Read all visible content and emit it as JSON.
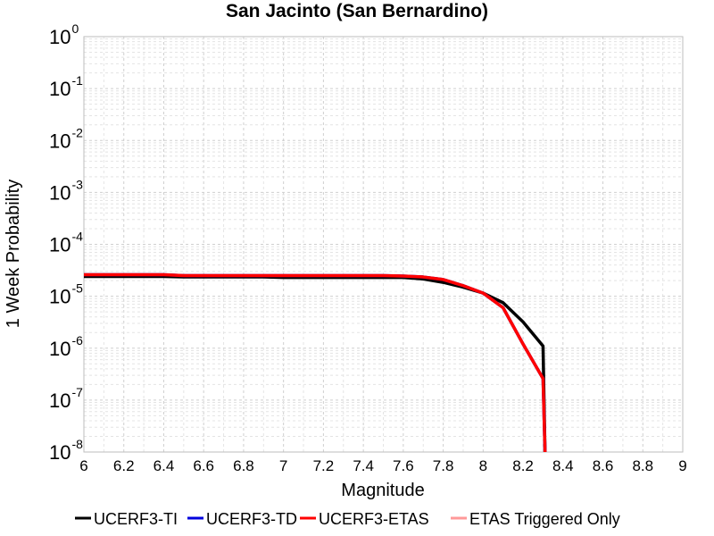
{
  "chart_data": {
    "type": "line",
    "title": "San Jacinto (San Bernardino)",
    "xlabel": "Magnitude",
    "ylabel": "1 Week Probability",
    "xlim": [
      6,
      9
    ],
    "ylim": [
      1e-08,
      1
    ],
    "yscale": "log",
    "grid": true,
    "x_ticks": [
      "6",
      "6.2",
      "6.4",
      "6.6",
      "6.8",
      "7",
      "7.2",
      "7.4",
      "7.6",
      "7.8",
      "8",
      "8.2",
      "8.4",
      "8.6",
      "8.8",
      "9"
    ],
    "y_ticks": [
      {
        "base": "10",
        "exp": "0"
      },
      {
        "base": "10",
        "exp": "-1"
      },
      {
        "base": "10",
        "exp": "-2"
      },
      {
        "base": "10",
        "exp": "-3"
      },
      {
        "base": "10",
        "exp": "-4"
      },
      {
        "base": "10",
        "exp": "-5"
      },
      {
        "base": "10",
        "exp": "-6"
      },
      {
        "base": "10",
        "exp": "-7"
      },
      {
        "base": "10",
        "exp": "-8"
      }
    ],
    "legend_position": "bottom",
    "series": [
      {
        "name": "UCERF3-TI",
        "color": "#000000",
        "x": [
          6.0,
          6.1,
          6.2,
          6.3,
          6.4,
          6.5,
          6.6,
          6.7,
          6.8,
          6.9,
          7.0,
          7.1,
          7.2,
          7.3,
          7.4,
          7.5,
          7.6,
          7.7,
          7.8,
          7.9,
          8.0,
          8.1,
          8.2,
          8.3,
          8.31
        ],
        "y": [
          2.4e-05,
          2.4e-05,
          2.4e-05,
          2.4e-05,
          2.4e-05,
          2.35e-05,
          2.35e-05,
          2.35e-05,
          2.35e-05,
          2.35e-05,
          2.3e-05,
          2.3e-05,
          2.3e-05,
          2.3e-05,
          2.3e-05,
          2.3e-05,
          2.3e-05,
          2.15e-05,
          1.85e-05,
          1.5e-05,
          1.15e-05,
          7.5e-06,
          3.2e-06,
          1.1e-06,
          1e-08
        ]
      },
      {
        "name": "UCERF3-TD",
        "color": "#0000dd",
        "x": [
          6.0,
          6.1,
          6.2,
          6.3,
          6.4,
          6.5,
          6.6,
          6.7,
          6.8,
          6.9,
          7.0,
          7.1,
          7.2,
          7.3,
          7.4,
          7.5,
          7.6,
          7.7,
          7.8,
          7.9,
          8.0,
          8.1,
          8.2,
          8.3,
          8.31
        ],
        "y": [
          2.6e-05,
          2.6e-05,
          2.6e-05,
          2.6e-05,
          2.6e-05,
          2.5e-05,
          2.5e-05,
          2.5e-05,
          2.5e-05,
          2.5e-05,
          2.5e-05,
          2.5e-05,
          2.5e-05,
          2.5e-05,
          2.5e-05,
          2.5e-05,
          2.45e-05,
          2.35e-05,
          2.1e-05,
          1.6e-05,
          1.15e-05,
          6e-06,
          1.2e-06,
          2.6e-07,
          1e-08
        ]
      },
      {
        "name": "UCERF3-ETAS",
        "color": "#ff0000",
        "x": [
          6.0,
          6.1,
          6.2,
          6.3,
          6.4,
          6.5,
          6.6,
          6.7,
          6.8,
          6.9,
          7.0,
          7.1,
          7.2,
          7.3,
          7.4,
          7.5,
          7.6,
          7.7,
          7.8,
          7.9,
          8.0,
          8.1,
          8.2,
          8.3,
          8.31
        ],
        "y": [
          2.6e-05,
          2.6e-05,
          2.6e-05,
          2.6e-05,
          2.6e-05,
          2.5e-05,
          2.5e-05,
          2.5e-05,
          2.5e-05,
          2.5e-05,
          2.5e-05,
          2.5e-05,
          2.5e-05,
          2.5e-05,
          2.5e-05,
          2.5e-05,
          2.45e-05,
          2.35e-05,
          2.1e-05,
          1.6e-05,
          1.15e-05,
          6e-06,
          1.2e-06,
          2.6e-07,
          1e-08
        ]
      },
      {
        "name": "ETAS Triggered Only",
        "color": "#ff9999",
        "x": [],
        "y": []
      }
    ]
  }
}
